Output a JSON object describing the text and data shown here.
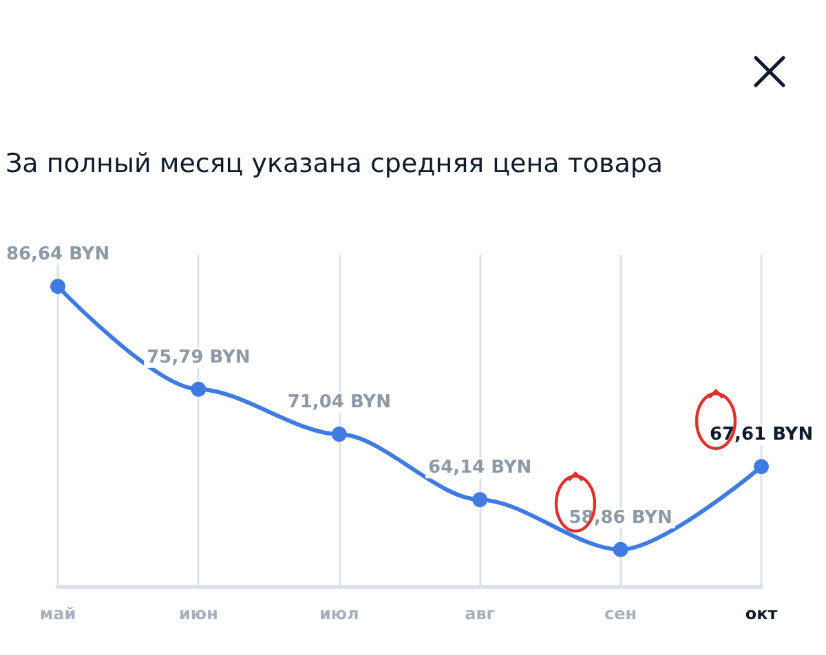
{
  "chart_data": {
    "type": "line",
    "title": "За полный месяц указана средняя цена товара",
    "categories": [
      "май",
      "июн",
      "июл",
      "авг",
      "сен",
      "окт"
    ],
    "series": [
      {
        "color": "#3f7be0",
        "values": [
          86.64,
          75.79,
          71.04,
          64.14,
          58.86,
          67.61
        ],
        "value_labels": [
          "86,64 BYN",
          "75,79 BYN",
          "71,04 BYN",
          "64,14 BYN",
          "58,86 BYN",
          "67,61 BYN"
        ]
      }
    ],
    "grid": "x",
    "marker": "circle",
    "line_style": "solid"
  }
}
